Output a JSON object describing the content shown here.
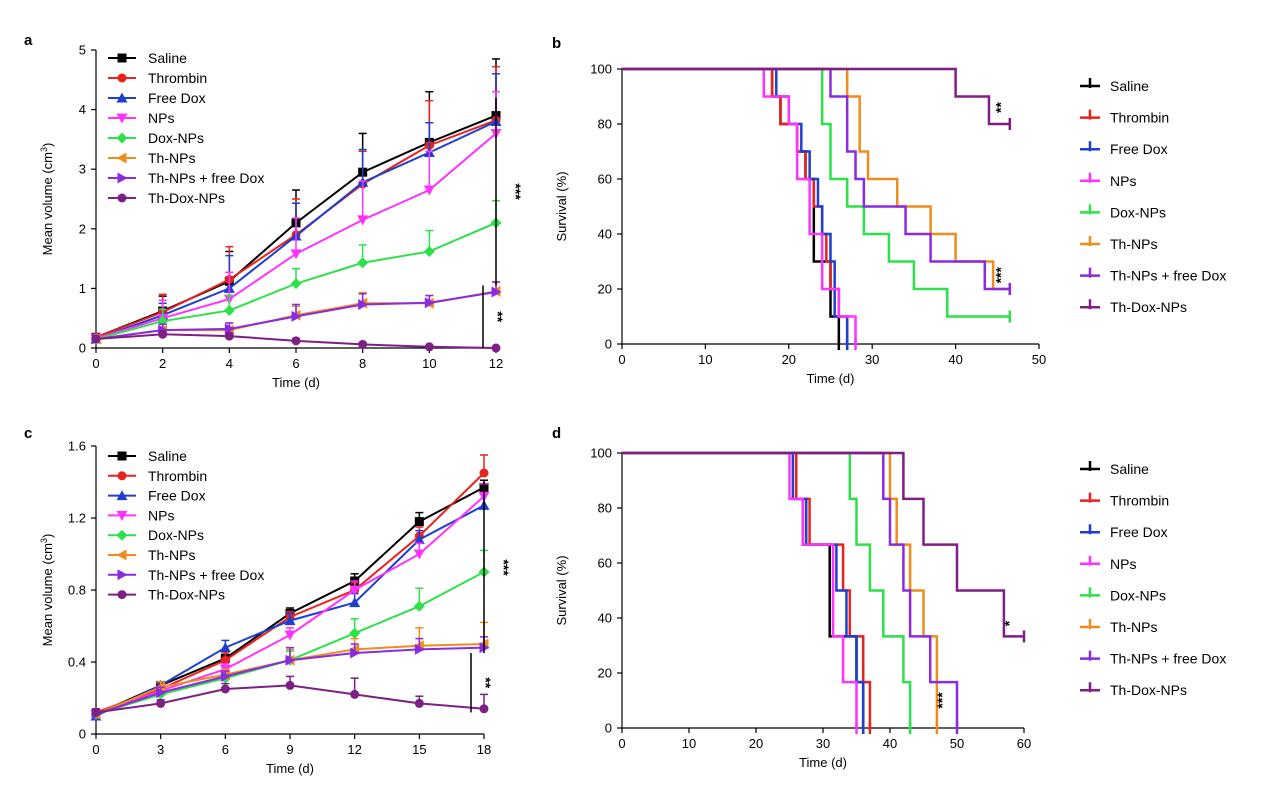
{
  "figure_title": "",
  "colors": {
    "Saline": "#000000",
    "Thrombin": "#e8231f",
    "Free Dox": "#1f3fcf",
    "NPs": "#ff33ff",
    "Dox-NPs": "#2ee04a",
    "Th-NPs": "#f08c1c",
    "Th-NPs + free Dox": "#8a2be2",
    "Th-Dox-NPs": "#7e1f86"
  },
  "markers": {
    "Saline": "square",
    "Thrombin": "circle",
    "Free Dox": "triangle-up",
    "NPs": "triangle-down",
    "Dox-NPs": "diamond",
    "Th-NPs": "triangle-left",
    "Th-NPs + free Dox": "triangle-right",
    "Th-Dox-NPs": "circle"
  },
  "chart_data": [
    {
      "panel": "a",
      "type": "line",
      "xlabel": "Time (d)",
      "ylabel": "Mean volume (cm",
      "ylabel_sup": "3",
      "ylabel_end": ")",
      "xlim": [
        0,
        12
      ],
      "ylim": [
        0,
        5
      ],
      "xticks": [
        0,
        2,
        4,
        6,
        8,
        10,
        12
      ],
      "yticks": [
        0,
        1,
        2,
        3,
        4,
        5
      ],
      "ytick_labels": [
        "0",
        "1",
        "2",
        "3",
        "4",
        "5"
      ],
      "legend": [
        "Saline",
        "Thrombin",
        "Free Dox",
        "NPs",
        "Dox-NPs",
        "Th-NPs",
        "Th-NPs + free Dox",
        "Th-Dox-NPs"
      ],
      "x": [
        0,
        2,
        4,
        6,
        8,
        10,
        12
      ],
      "series": [
        {
          "name": "Saline",
          "values": [
            0.18,
            0.62,
            1.12,
            2.1,
            2.95,
            3.45,
            3.9
          ],
          "err": [
            0.05,
            0.25,
            0.5,
            0.55,
            0.65,
            0.85,
            0.95
          ]
        },
        {
          "name": "Thrombin",
          "values": [
            0.18,
            0.6,
            1.15,
            1.9,
            2.75,
            3.4,
            3.82
          ],
          "err": [
            0.05,
            0.3,
            0.55,
            0.6,
            0.55,
            0.75,
            0.9
          ]
        },
        {
          "name": "Free Dox",
          "values": [
            0.15,
            0.55,
            1.0,
            1.88,
            2.78,
            3.28,
            3.8
          ],
          "err": [
            0.05,
            0.2,
            0.55,
            0.55,
            0.55,
            0.5,
            0.8
          ]
        },
        {
          "name": "NPs",
          "values": [
            0.16,
            0.5,
            0.82,
            1.58,
            2.15,
            2.65,
            3.6
          ],
          "err": [
            0.05,
            0.3,
            0.45,
            0.6,
            0.65,
            0.65,
            0.7
          ]
        },
        {
          "name": "Dox-NPs",
          "values": [
            0.15,
            0.45,
            0.63,
            1.08,
            1.43,
            1.62,
            2.1
          ],
          "err": [
            0.05,
            0.2,
            0.25,
            0.25,
            0.3,
            0.35,
            0.37
          ]
        },
        {
          "name": "Th-NPs",
          "values": [
            0.15,
            0.3,
            0.3,
            0.55,
            0.75,
            0.75,
            0.95
          ],
          "err": [
            0.05,
            0.1,
            0.12,
            0.15,
            0.18,
            0.13,
            0.15
          ]
        },
        {
          "name": "Th-NPs + free Dox",
          "values": [
            0.15,
            0.3,
            0.32,
            0.53,
            0.73,
            0.76,
            0.94
          ],
          "err": [
            0.05,
            0.1,
            0.1,
            0.2,
            0.18,
            0.12,
            0.17
          ]
        },
        {
          "name": "Th-Dox-NPs",
          "values": [
            0.15,
            0.23,
            0.2,
            0.12,
            0.06,
            0.02,
            0.0
          ],
          "err": [
            0.05,
            0.05,
            0.05,
            0.04,
            0.03,
            0.02,
            0.0
          ]
        }
      ],
      "significance": [
        {
          "label": "***",
          "y_from": 1.05,
          "y_to": 4.2
        },
        {
          "label": "**",
          "y_from": 0.0,
          "y_to": 1.05
        }
      ]
    },
    {
      "panel": "b",
      "type": "line",
      "subtype": "kaplan-meier",
      "xlabel": "Time (d)",
      "ylabel": "Survival (%)",
      "xlim": [
        0,
        50
      ],
      "ylim": [
        0,
        100
      ],
      "xticks": [
        0,
        10,
        20,
        30,
        40,
        50
      ],
      "yticks": [
        0,
        20,
        40,
        60,
        80,
        100
      ],
      "legend": [
        "Saline",
        "Thrombin",
        "Free Dox",
        "NPs",
        "Dox-NPs",
        "Th-NPs",
        "Th-NPs + free Dox",
        "Th-Dox-NPs"
      ],
      "series": [
        {
          "name": "Saline",
          "steps": [
            [
              0,
              100
            ],
            [
              18,
              90
            ],
            [
              19,
              80
            ],
            [
              21,
              70
            ],
            [
              22,
              60
            ],
            [
              23,
              30
            ],
            [
              25,
              10
            ],
            [
              26,
              0
            ]
          ]
        },
        {
          "name": "Thrombin",
          "steps": [
            [
              0,
              100
            ],
            [
              18,
              90
            ],
            [
              19,
              80
            ],
            [
              21,
              70
            ],
            [
              22,
              60
            ],
            [
              23,
              50
            ],
            [
              24,
              40
            ],
            [
              24.5,
              30
            ],
            [
              25,
              20
            ],
            [
              26,
              10
            ],
            [
              27,
              0
            ]
          ]
        },
        {
          "name": "Free Dox",
          "steps": [
            [
              0,
              100
            ],
            [
              18.5,
              90
            ],
            [
              20,
              80
            ],
            [
              21.5,
              70
            ],
            [
              22.5,
              60
            ],
            [
              23.5,
              50
            ],
            [
              24,
              40
            ],
            [
              25,
              30
            ],
            [
              25.5,
              10
            ],
            [
              27,
              0
            ]
          ]
        },
        {
          "name": "NPs",
          "steps": [
            [
              0,
              100
            ],
            [
              17,
              90
            ],
            [
              20,
              80
            ],
            [
              21,
              60
            ],
            [
              22.5,
              40
            ],
            [
              24,
              20
            ],
            [
              26,
              10
            ],
            [
              28,
              0
            ]
          ]
        },
        {
          "name": "Dox-NPs",
          "steps": [
            [
              0,
              100
            ],
            [
              24,
              80
            ],
            [
              25,
              60
            ],
            [
              27,
              50
            ],
            [
              29,
              40
            ],
            [
              32,
              30
            ],
            [
              35,
              20
            ],
            [
              39,
              10
            ],
            [
              46.5,
              10
            ]
          ]
        },
        {
          "name": "Th-NPs",
          "steps": [
            [
              0,
              100
            ],
            [
              27,
              90
            ],
            [
              28.5,
              70
            ],
            [
              29.5,
              60
            ],
            [
              33,
              50
            ],
            [
              37,
              40
            ],
            [
              40,
              30
            ],
            [
              44.5,
              20
            ],
            [
              46.5,
              20
            ]
          ]
        },
        {
          "name": "Th-NPs + free Dox",
          "steps": [
            [
              0,
              100
            ],
            [
              25,
              90
            ],
            [
              27,
              70
            ],
            [
              28,
              60
            ],
            [
              29,
              50
            ],
            [
              34,
              40
            ],
            [
              37,
              30
            ],
            [
              43.5,
              20
            ],
            [
              46.5,
              20
            ]
          ]
        },
        {
          "name": "Th-Dox-NPs",
          "steps": [
            [
              0,
              100
            ],
            [
              40,
              90
            ],
            [
              44,
              80
            ],
            [
              46.5,
              80
            ]
          ]
        }
      ],
      "significance": [
        {
          "label": "**",
          "x": 46,
          "y": 86
        },
        {
          "label": "***",
          "x": 46,
          "y": 25
        }
      ]
    },
    {
      "panel": "c",
      "type": "line",
      "xlabel": "Time (d)",
      "ylabel": "Mean volume (cm",
      "ylabel_sup": "3",
      "ylabel_end": ")",
      "xlim": [
        0,
        18
      ],
      "ylim": [
        0,
        1.6
      ],
      "xticks": [
        0,
        3,
        6,
        9,
        12,
        15,
        18
      ],
      "yticks": [
        0,
        0.4,
        0.8,
        1.2,
        1.6
      ],
      "ytick_labels": [
        "0",
        "0.4",
        "0.8",
        "1.2",
        "1.6"
      ],
      "legend": [
        "Saline",
        "Thrombin",
        "Free Dox",
        "NPs",
        "Dox-NPs",
        "Th-NPs",
        "Th-NPs + free Dox",
        "Th-Dox-NPs"
      ],
      "x": [
        0,
        3,
        6,
        9,
        12,
        15,
        18
      ],
      "series": [
        {
          "name": "Saline",
          "values": [
            0.11,
            0.27,
            0.42,
            0.67,
            0.85,
            1.18,
            1.37
          ],
          "err": [
            0.02,
            0.02,
            0.04,
            0.03,
            0.04,
            0.05,
            0.04
          ]
        },
        {
          "name": "Thrombin",
          "values": [
            0.12,
            0.25,
            0.41,
            0.65,
            0.8,
            1.1,
            1.45
          ],
          "err": [
            0.02,
            0.03,
            0.04,
            0.03,
            0.04,
            0.05,
            0.1
          ]
        },
        {
          "name": "Free Dox",
          "values": [
            0.1,
            0.27,
            0.48,
            0.63,
            0.73,
            1.08,
            1.27
          ],
          "err": [
            0.02,
            0.02,
            0.04,
            0.04,
            0.05,
            0.05,
            0.07
          ]
        },
        {
          "name": "NPs",
          "values": [
            0.11,
            0.24,
            0.36,
            0.55,
            0.8,
            1.0,
            1.32
          ],
          "err": [
            0.02,
            0.02,
            0.03,
            0.04,
            0.05,
            0.06,
            0.07
          ]
        },
        {
          "name": "Dox-NPs",
          "values": [
            0.11,
            0.22,
            0.31,
            0.41,
            0.56,
            0.71,
            0.9
          ],
          "err": [
            0.02,
            0.03,
            0.03,
            0.05,
            0.08,
            0.1,
            0.12
          ]
        },
        {
          "name": "Th-NPs",
          "values": [
            0.11,
            0.26,
            0.33,
            0.41,
            0.47,
            0.49,
            0.5
          ],
          "err": [
            0.02,
            0.03,
            0.03,
            0.06,
            0.06,
            0.1,
            0.12
          ]
        },
        {
          "name": "Th-NPs + free Dox",
          "values": [
            0.11,
            0.23,
            0.32,
            0.41,
            0.45,
            0.47,
            0.48
          ],
          "err": [
            0.02,
            0.03,
            0.03,
            0.07,
            0.05,
            0.06,
            0.06
          ]
        },
        {
          "name": "Th-Dox-NPs",
          "values": [
            0.12,
            0.17,
            0.25,
            0.27,
            0.22,
            0.17,
            0.14
          ],
          "err": [
            0.02,
            0.02,
            0.03,
            0.05,
            0.09,
            0.04,
            0.08
          ]
        }
      ],
      "significance": [
        {
          "label": "***",
          "y_from": 0.45,
          "y_to": 1.4
        },
        {
          "label": "**",
          "y_from": 0.12,
          "y_to": 0.45
        }
      ]
    },
    {
      "panel": "d",
      "type": "line",
      "subtype": "kaplan-meier",
      "xlabel": "Time (d)",
      "ylabel": "Survival (%)",
      "xlim": [
        0,
        60
      ],
      "ylim": [
        0,
        100
      ],
      "xticks": [
        0,
        10,
        20,
        30,
        40,
        50,
        60
      ],
      "yticks": [
        0,
        20,
        40,
        60,
        80,
        100
      ],
      "legend": [
        "Saline",
        "Thrombin",
        "Free Dox",
        "NPs",
        "Dox-NPs",
        "Th-NPs",
        "Th-NPs + free Dox",
        "Th-Dox-NPs"
      ],
      "series": [
        {
          "name": "Saline",
          "steps": [
            [
              0,
              100
            ],
            [
              26,
              83.3
            ],
            [
              27,
              66.7
            ],
            [
              31,
              33.3
            ],
            [
              35,
              16.7
            ],
            [
              36,
              0
            ]
          ]
        },
        {
          "name": "Thrombin",
          "steps": [
            [
              0,
              100
            ],
            [
              26,
              83.3
            ],
            [
              28,
              66.7
            ],
            [
              33,
              50
            ],
            [
              34,
              33.3
            ],
            [
              36,
              16.7
            ],
            [
              37,
              0
            ]
          ]
        },
        {
          "name": "Free Dox",
          "steps": [
            [
              0,
              100
            ],
            [
              25.5,
              83.3
            ],
            [
              27.5,
              66.7
            ],
            [
              32,
              50
            ],
            [
              33.5,
              33.3
            ],
            [
              35,
              16.7
            ],
            [
              36,
              0
            ]
          ]
        },
        {
          "name": "NPs",
          "steps": [
            [
              0,
              100
            ],
            [
              25,
              83.3
            ],
            [
              27,
              66.7
            ],
            [
              31.5,
              33.3
            ],
            [
              33,
              16.7
            ],
            [
              35,
              0
            ]
          ]
        },
        {
          "name": "Dox-NPs",
          "steps": [
            [
              0,
              100
            ],
            [
              34,
              83.3
            ],
            [
              35,
              66.7
            ],
            [
              37,
              50
            ],
            [
              39,
              33.3
            ],
            [
              42,
              16.7
            ],
            [
              43,
              0
            ]
          ]
        },
        {
          "name": "Th-NPs",
          "steps": [
            [
              0,
              100
            ],
            [
              40,
              83.3
            ],
            [
              41,
              66.7
            ],
            [
              43,
              50
            ],
            [
              45,
              33.3
            ],
            [
              47,
              0
            ]
          ]
        },
        {
          "name": "Th-NPs + free Dox",
          "steps": [
            [
              0,
              100
            ],
            [
              39,
              83.3
            ],
            [
              40,
              66.7
            ],
            [
              42,
              50
            ],
            [
              43,
              33.3
            ],
            [
              46,
              16.7
            ],
            [
              50,
              0
            ]
          ]
        },
        {
          "name": "Th-Dox-NPs",
          "steps": [
            [
              0,
              100
            ],
            [
              42,
              83.3
            ],
            [
              45,
              66.7
            ],
            [
              50,
              50
            ],
            [
              57,
              33.3
            ],
            [
              60,
              33.3
            ]
          ]
        }
      ],
      "significance": [
        {
          "label": "*",
          "x": 58.5,
          "y": 38
        },
        {
          "label": "***",
          "x": 48.5,
          "y": 10
        }
      ]
    }
  ]
}
